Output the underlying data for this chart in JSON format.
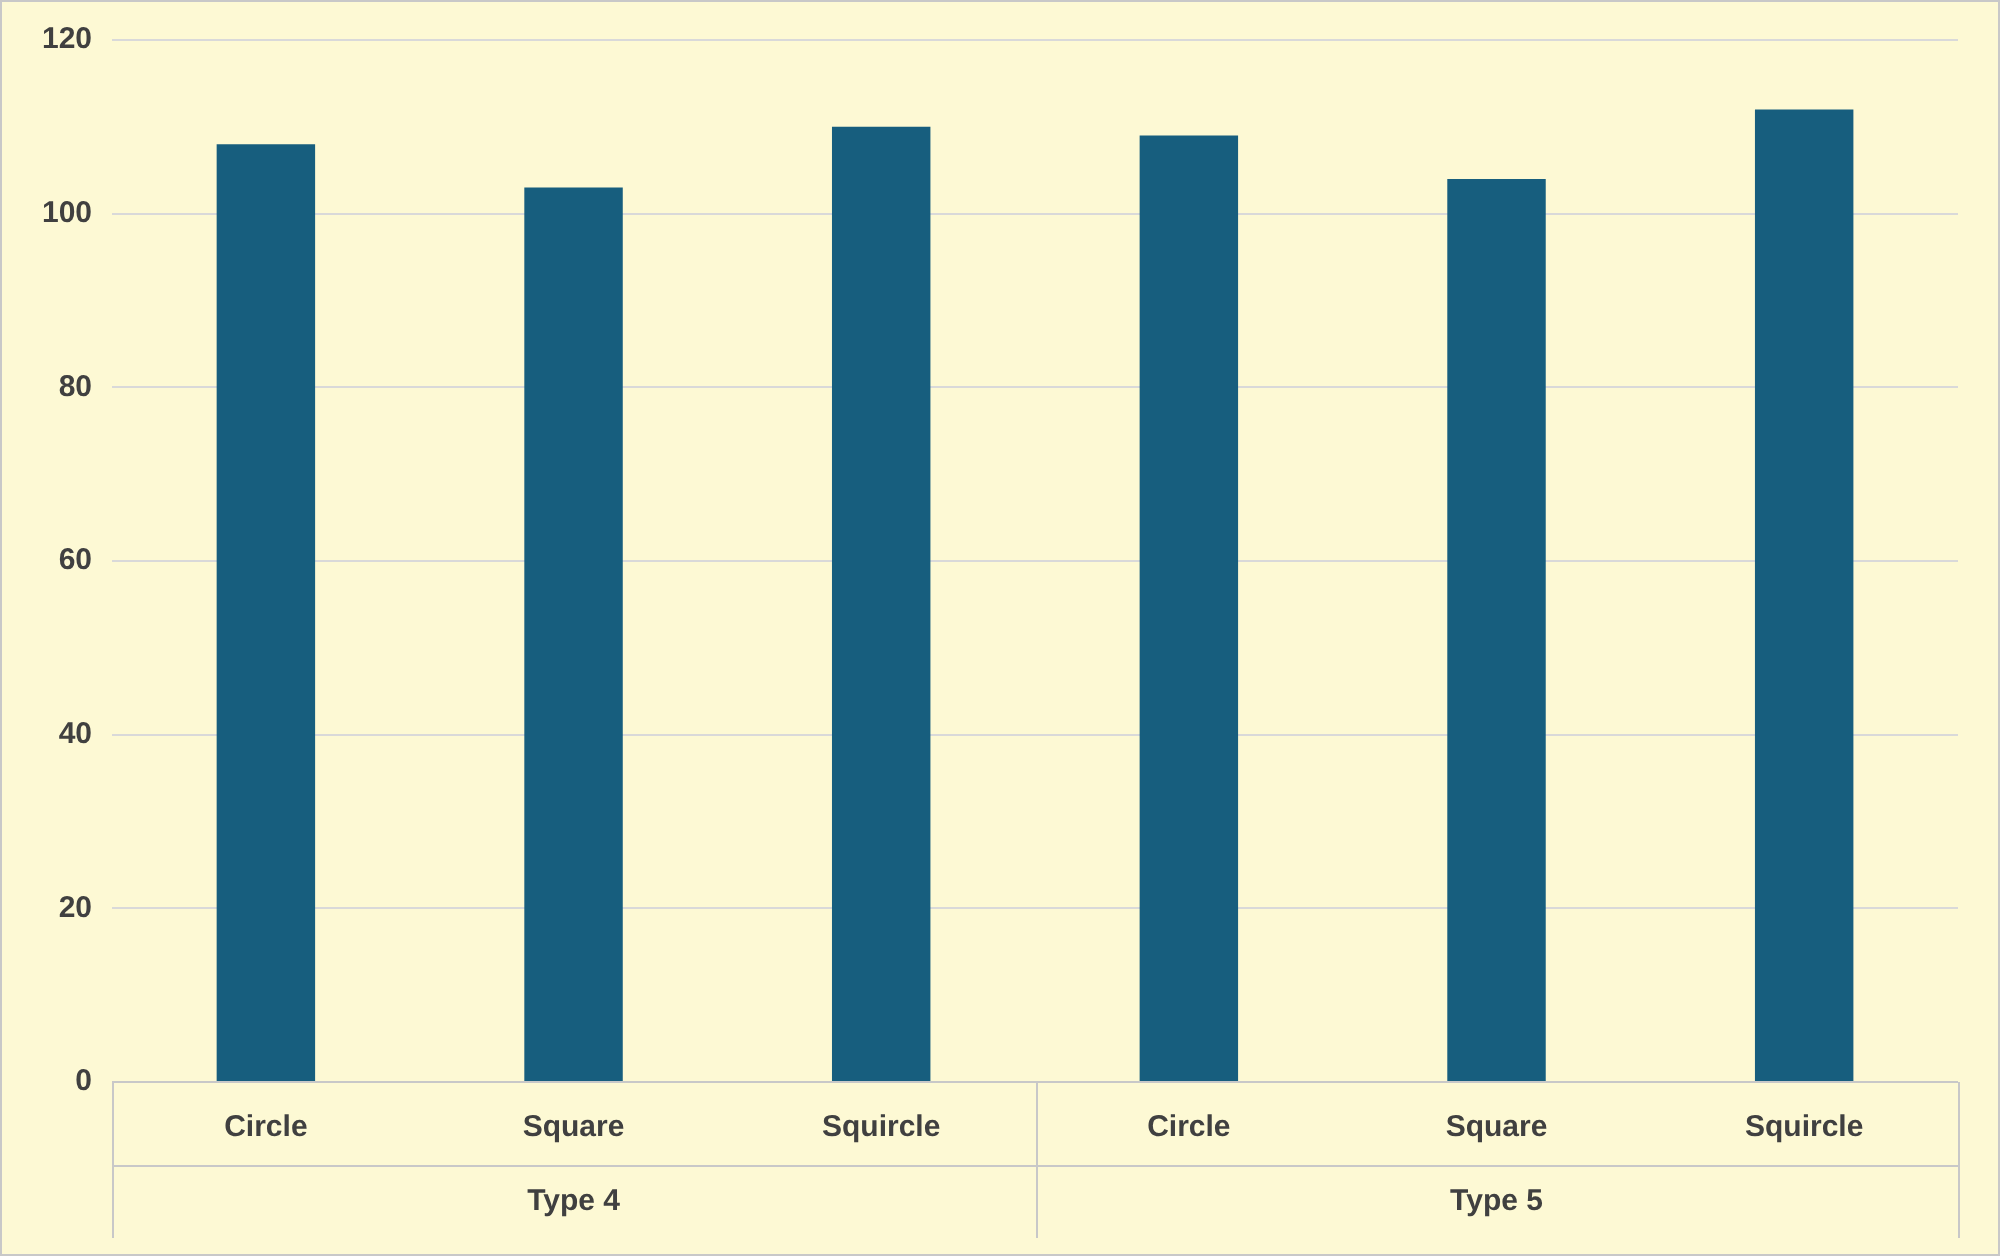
{
  "chart_data": {
    "type": "bar",
    "categories": [
      "Circle",
      "Square",
      "Squircle",
      "Circle",
      "Square",
      "Squircle"
    ],
    "values": [
      108,
      103,
      110,
      109,
      104,
      112
    ],
    "color": "#175e7e",
    "ylim": [
      0,
      120
    ],
    "yticks": [
      0,
      20,
      40,
      60,
      80,
      100,
      120
    ],
    "grid": "y",
    "legend": false,
    "annotations": [
      "Type 4",
      "Type 5"
    ]
  }
}
